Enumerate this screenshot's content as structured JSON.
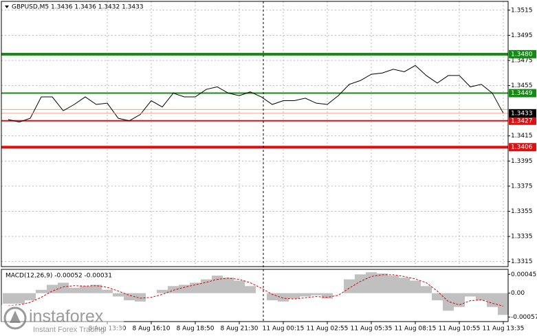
{
  "chart_data": [
    {
      "type": "line",
      "title": "GBPUSD,M5  1.3436 1.3436 1.3432 1.3433",
      "color": "#000000",
      "grid": true,
      "categories": [
        null,
        null,
        null,
        null,
        null,
        null,
        null,
        null,
        null,
        "8 Aug 13:30",
        null,
        null,
        null,
        "8 Aug 16:10",
        null,
        null,
        null,
        "8 Aug 18:50",
        null,
        null,
        null,
        "8 Aug 21:30",
        null,
        null,
        null,
        "11 Aug 00:15",
        null,
        null,
        null,
        "11 Aug 02:55",
        null,
        null,
        null,
        "11 Aug 05:35",
        null,
        null,
        null,
        "11 Aug 08:15",
        null,
        null,
        null,
        "11 Aug 10:55",
        null,
        null,
        null,
        "11 Aug 13:35"
      ],
      "values": [
        1.3428,
        1.3426,
        1.3429,
        1.3446,
        1.3446,
        1.3435,
        1.344,
        1.3446,
        1.344,
        1.3441,
        1.3429,
        1.3427,
        1.3432,
        1.3443,
        1.3438,
        1.3449,
        1.3446,
        1.3446,
        1.3452,
        1.3454,
        1.3449,
        1.3447,
        1.345,
        1.3446,
        1.344,
        1.3443,
        1.3443,
        1.3445,
        1.3441,
        1.344,
        1.3447,
        1.3456,
        1.3459,
        1.3464,
        1.3465,
        1.3468,
        1.3466,
        1.3471,
        1.3463,
        1.3457,
        1.3463,
        1.3463,
        1.3454,
        1.3456,
        1.3449,
        1.3433
      ],
      "ylim": [
        1.3311,
        1.3522
      ],
      "yticks": [
        1.3315,
        1.3335,
        1.3355,
        1.3375,
        1.3395,
        1.3415,
        1.3455,
        1.3475,
        1.3495,
        1.3515
      ],
      "levels": [
        {
          "value": 1.348,
          "label": "1.3480",
          "color": "#138a13",
          "width": 4
        },
        {
          "value": 1.3449,
          "label": "1.3449",
          "color": "#138a13",
          "width": 2
        },
        {
          "value": 1.3436,
          "color": "#f0a080",
          "width": 1
        },
        {
          "value": 1.3427,
          "label": "1.3427",
          "color": "#e01010",
          "width": 2
        },
        {
          "value": 1.3406,
          "label": "1.3406",
          "color": "#e01010",
          "width": 4
        }
      ],
      "last_price": {
        "value": 1.3433,
        "label": "1.3433"
      }
    },
    {
      "type": "macd",
      "title": "MACD(12,26,9) -0.00052 -0.00031",
      "histogram_color": "#c0c0c0",
      "signal_color": "#e00000",
      "histogram_values": [
        -0.00025,
        -0.00025,
        -0.00017,
        8e-05,
        0.0002,
        0.00025,
        0.00013,
        0.00017,
        0.0002,
        8e-05,
        -8e-05,
        -0.00017,
        -0.0002,
        0,
        8e-05,
        0.00017,
        0.0002,
        0.00025,
        0.00033,
        0.00042,
        0.00037,
        0.0003,
        0.00017,
        0,
        -0.00017,
        -0.0002,
        -0.00013,
        -8e-05,
        -5e-05,
        -0.00013,
        0,
        0.00033,
        0.00045,
        0.0005,
        0.00047,
        0.00042,
        0.00037,
        0.0003,
        0.00017,
        -0.00017,
        -0.00042,
        -0.00033,
        -8e-05,
        -0.00017,
        -0.00033,
        -0.00052
      ],
      "signal_values": [
        -0.0003,
        -0.00028,
        -0.00022,
        -0.0001,
        5e-05,
        0.00015,
        0.00018,
        0.00017,
        0.00018,
        0.00014,
        5e-05,
        -5e-05,
        -0.00012,
        -0.0001,
        -3e-05,
        7e-05,
        0.00014,
        0.0002,
        0.00026,
        0.00033,
        0.00036,
        0.00033,
        0.00025,
        0.00012,
        -3e-05,
        -0.00012,
        -0.00014,
        -0.00011,
        -8e-05,
        -0.0001,
        -5e-05,
        0.00012,
        0.00028,
        0.0004,
        0.00044,
        0.00044,
        0.0004,
        0.00034,
        0.00025,
        5e-05,
        -0.0002,
        -0.00028,
        -0.00018,
        -0.00016,
        -0.00024,
        -0.00031
      ],
      "ylim": [
        -0.00068,
        0.00057
      ],
      "yticks": [
        -0.00057,
        {
          "value": 0,
          "label": "0.00"
        },
        0.00045
      ]
    }
  ],
  "watermark": {
    "brand": "instaforex",
    "tagline": "Instant Forex Trading"
  }
}
